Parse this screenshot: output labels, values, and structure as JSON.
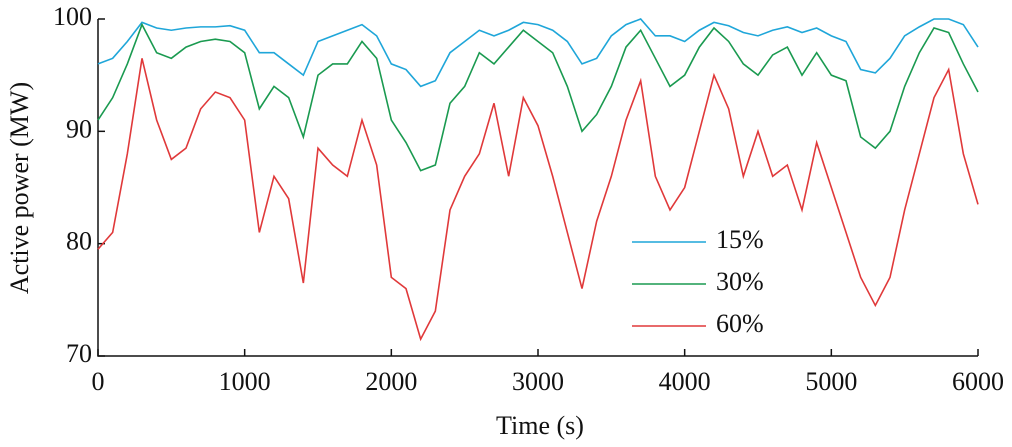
{
  "chart_data": {
    "type": "line",
    "xlabel": "Time (s)",
    "ylabel": "Active power (MW)",
    "x": [
      0,
      100,
      200,
      300,
      400,
      500,
      600,
      700,
      800,
      900,
      1000,
      1100,
      1200,
      1300,
      1400,
      1500,
      1600,
      1700,
      1800,
      1900,
      2000,
      2100,
      2200,
      2300,
      2400,
      2500,
      2600,
      2700,
      2800,
      2900,
      3000,
      3100,
      3200,
      3300,
      3400,
      3500,
      3600,
      3700,
      3800,
      3900,
      4000,
      4100,
      4200,
      4300,
      4400,
      4500,
      4600,
      4700,
      4800,
      4900,
      5000,
      5100,
      5200,
      5300,
      5400,
      5500,
      5600,
      5700,
      5800,
      5900,
      6000
    ],
    "series": [
      {
        "name": "15%",
        "color": "#1fa6d9",
        "values": [
          96,
          96.5,
          98,
          99.7,
          99.2,
          99,
          99.2,
          99.3,
          99.3,
          99.4,
          99,
          97,
          97,
          96,
          95,
          98,
          98.5,
          99,
          99.5,
          98.5,
          96,
          95.5,
          94,
          94.5,
          97,
          98,
          99,
          98.5,
          99,
          99.7,
          99.5,
          99,
          98,
          96,
          96.5,
          98.5,
          99.5,
          100,
          98.5,
          98.5,
          98,
          99,
          99.7,
          99.4,
          98.8,
          98.5,
          99,
          99.3,
          98.8,
          99.2,
          98.5,
          98,
          95.5,
          95.2,
          96.5,
          98.5,
          99.3,
          100,
          100,
          99.5,
          97.5
        ]
      },
      {
        "name": "30%",
        "color": "#1a9a50",
        "values": [
          91,
          93,
          96,
          99.5,
          97,
          96.5,
          97.5,
          98,
          98.2,
          98,
          97,
          92,
          94,
          93,
          89.5,
          95,
          96,
          96,
          98,
          96.5,
          91,
          89,
          86.5,
          87,
          92.5,
          94,
          97,
          96,
          97.5,
          99,
          98,
          97,
          94,
          90,
          91.5,
          94,
          97.5,
          99,
          96.5,
          94,
          95,
          97.5,
          99.2,
          98,
          96,
          95,
          96.8,
          97.5,
          95,
          97,
          95,
          94.5,
          89.5,
          88.5,
          90,
          94,
          97,
          99.2,
          98.8,
          96,
          93.5
        ]
      },
      {
        "name": "60%",
        "color": "#e0393a",
        "values": [
          79.5,
          81,
          88,
          96.5,
          91,
          87.5,
          88.5,
          92,
          93.5,
          93,
          91,
          81,
          86,
          84,
          76.5,
          88.5,
          87,
          86,
          91,
          87,
          77,
          76,
          71.5,
          74,
          83,
          86,
          88,
          92.5,
          86,
          93,
          90.5,
          86,
          81,
          76,
          82,
          86,
          91,
          94.5,
          86,
          83,
          85,
          90,
          95,
          92,
          86,
          90,
          86,
          87,
          83,
          89,
          85,
          81,
          77,
          74.5,
          77,
          83,
          88,
          93,
          95.5,
          88,
          83.5
        ]
      }
    ],
    "xlim": [
      0,
      6000
    ],
    "xticks": [
      0,
      1000,
      2000,
      3000,
      4000,
      5000,
      6000
    ],
    "ylim": [
      70,
      100
    ],
    "yticks": [
      70,
      80,
      90,
      100
    ],
    "grid": false,
    "legend": "lower right"
  }
}
